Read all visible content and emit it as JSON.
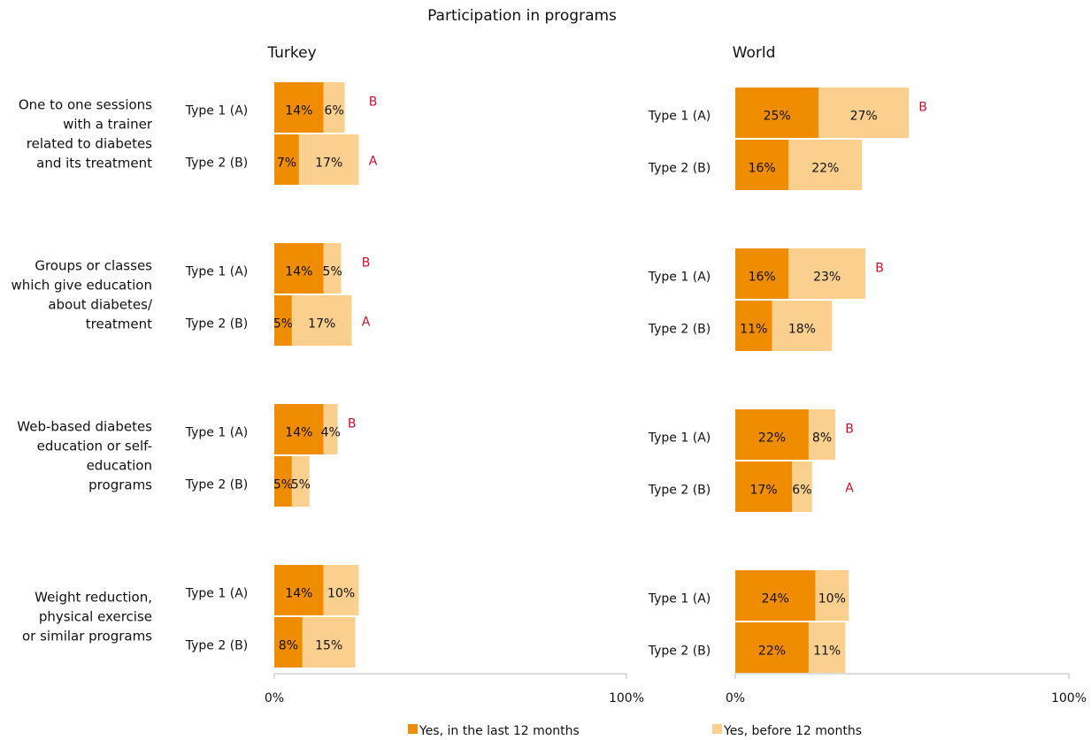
{
  "title": "Participation in programs",
  "groups": [
    [
      "One to one sessions",
      "with a trainer",
      "related to diabetes",
      "and its treatment"
    ],
    [
      "Groups or classes",
      "which give education",
      "about diabetes/",
      "treatment"
    ],
    [
      "Web-based diabetes",
      "education or self-",
      "education",
      "programs"
    ],
    [
      "Weight reduction,",
      "physical exercise",
      "or similar programs"
    ]
  ],
  "chart_data": [
    {
      "type": "stacked-bar",
      "title": "Turkey",
      "categories": [
        "Type 1 (A)",
        "Type 2 (B)",
        "Type 1 (A)",
        "Type 2 (B)",
        "Type 1 (A)",
        "Type 2 (B)",
        "Type 1 (A)",
        "Type 2 (B)"
      ],
      "series": [
        {
          "name": "Yes, in the last 12 months",
          "color": "#f08c00",
          "values": [
            14,
            7,
            14,
            5,
            14,
            5,
            14,
            8
          ],
          "value_labels": [
            "14%",
            "7%",
            "14%",
            "5%",
            "14%",
            "5%",
            "14%",
            "8%"
          ]
        },
        {
          "name": "Yes, before 12 months",
          "color": "#fbd08f",
          "values": [
            6,
            17,
            5,
            17,
            4,
            5,
            10,
            15
          ],
          "value_labels": [
            "6%",
            "17%",
            "5%",
            "17%",
            "4%",
            "5%",
            "10%",
            "15%"
          ]
        }
      ],
      "annotations": [
        "B",
        "A",
        "B",
        "A",
        "B",
        null,
        null,
        null
      ],
      "xlim": [
        0,
        100
      ],
      "xticks": [
        {
          "value": 0,
          "label": "0%"
        },
        {
          "value": 100,
          "label": "100%"
        }
      ]
    },
    {
      "type": "stacked-bar",
      "title": "World",
      "categories": [
        "Type 1 (A)",
        "Type 2 (B)",
        "Type 1 (A)",
        "Type 2 (B)",
        "Type 1 (A)",
        "Type 2 (B)",
        "Type 1 (A)",
        "Type 2 (B)"
      ],
      "series": [
        {
          "name": "Yes, in the last 12 months",
          "color": "#f08c00",
          "values": [
            25,
            16,
            16,
            11,
            22,
            17,
            24,
            22
          ],
          "value_labels": [
            "25%",
            "16%",
            "16%",
            "11%",
            "22%",
            "17%",
            "24%",
            "22%"
          ]
        },
        {
          "name": "Yes, before 12 months",
          "color": "#fbd08f",
          "values": [
            27,
            22,
            23,
            18,
            8,
            6,
            10,
            11
          ],
          "value_labels": [
            "27%",
            "22%",
            "23%",
            "18%",
            "8%",
            "6%",
            "10%",
            "11%"
          ]
        }
      ],
      "annotations": [
        "B",
        null,
        "B",
        null,
        "B",
        "A",
        null,
        null
      ],
      "xlim": [
        0,
        100
      ],
      "xticks": [
        {
          "value": 0,
          "label": "0%"
        },
        {
          "value": 100,
          "label": "100%"
        }
      ]
    }
  ]
}
